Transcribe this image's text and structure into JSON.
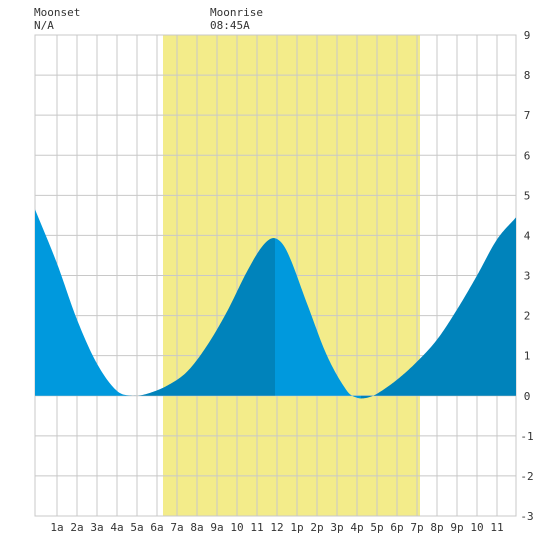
{
  "header": {
    "moonset_label": "Moonset",
    "moonset_time": "N/A",
    "moonrise_label": "Moonrise",
    "moonrise_time": "08:45A"
  },
  "chart_data": {
    "type": "area",
    "title": "",
    "xlabel": "",
    "ylabel": "",
    "xlim": [
      -0.1,
      23.95
    ],
    "ylim": [
      -3,
      9
    ],
    "grid": true,
    "x_tick_labels": [
      "1a",
      "2a",
      "3a",
      "4a",
      "5a",
      "6a",
      "7a",
      "8a",
      "9a",
      "10",
      "11",
      "12",
      "1p",
      "2p",
      "3p",
      "4p",
      "5p",
      "6p",
      "7p",
      "8p",
      "9p",
      "10",
      "11"
    ],
    "y_ticks": [
      -3,
      -2,
      -1,
      0,
      1,
      2,
      3,
      4,
      5,
      6,
      7,
      8,
      9
    ],
    "daylight_shading": {
      "start_hour": 6.3,
      "end_hour": 19.15,
      "color": "#f3ec8a"
    },
    "series": [
      {
        "values_xy": [
          [
            -0.1,
            4.65
          ],
          [
            1,
            3.3
          ],
          [
            2,
            1.9
          ],
          [
            3,
            0.8
          ],
          [
            4,
            0.12
          ],
          [
            4.8,
            0.0
          ],
          [
            5.5,
            0.05
          ],
          [
            6.5,
            0.25
          ],
          [
            7.5,
            0.6
          ],
          [
            8.5,
            1.25
          ],
          [
            9.5,
            2.1
          ],
          [
            10.5,
            3.1
          ],
          [
            11.3,
            3.75
          ],
          [
            11.9,
            3.93
          ],
          [
            12.5,
            3.6
          ],
          [
            13.5,
            2.3
          ],
          [
            14.5,
            1.0
          ],
          [
            15.5,
            0.12
          ],
          [
            16,
            -0.05
          ],
          [
            16.5,
            -0.05
          ],
          [
            17,
            0.05
          ],
          [
            18,
            0.4
          ],
          [
            19,
            0.85
          ],
          [
            20,
            1.4
          ],
          [
            21,
            2.15
          ],
          [
            22,
            3.0
          ],
          [
            23,
            3.9
          ],
          [
            23.95,
            4.45
          ]
        ],
        "segments": [
          {
            "from": -0.1,
            "to": 4.8,
            "color": "#0099dd"
          },
          {
            "from": 4.8,
            "to": 11.9,
            "color": "#0083bb"
          },
          {
            "from": 11.9,
            "to": 16.2,
            "color": "#0099dd"
          },
          {
            "from": 16.2,
            "to": 23.95,
            "color": "#0083bb"
          }
        ]
      }
    ]
  }
}
